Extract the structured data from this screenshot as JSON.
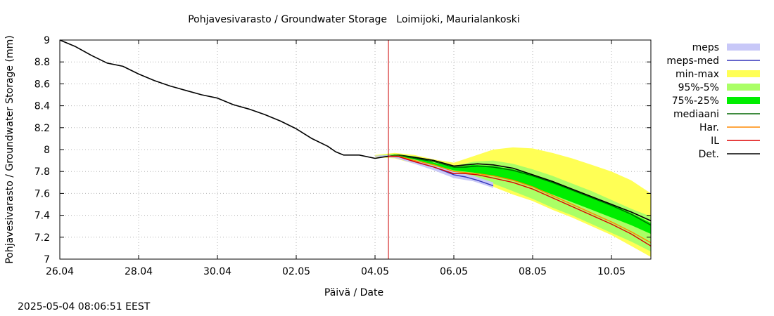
{
  "timestamp": "2025-05-04 08:06:51 EEST",
  "chart_data": {
    "type": "line",
    "title": "Pohjavesivarasto / Groundwater Storage   Loimijoki, Maurialankoski",
    "xlabel": "Päivä / Date",
    "ylabel": "Pohjavesivarasto / Groundwater Storage (mm)",
    "xlim": [
      0,
      15
    ],
    "ylim": [
      7,
      9
    ],
    "grid": true,
    "legend_position": "right",
    "x_ticks": [
      {
        "x": 0,
        "label": "26.04"
      },
      {
        "x": 2,
        "label": "28.04"
      },
      {
        "x": 4,
        "label": "30.04"
      },
      {
        "x": 6,
        "label": "02.05"
      },
      {
        "x": 8,
        "label": "04.05"
      },
      {
        "x": 10,
        "label": "06.05"
      },
      {
        "x": 12,
        "label": "08.05"
      },
      {
        "x": 14,
        "label": "10.05"
      }
    ],
    "y_ticks": [
      {
        "y": 7,
        "label": "7"
      },
      {
        "y": 7.2,
        "label": "7.2"
      },
      {
        "y": 7.4,
        "label": "7.4"
      },
      {
        "y": 7.6,
        "label": "7.6"
      },
      {
        "y": 7.8,
        "label": "7.8"
      },
      {
        "y": 8,
        "label": "8"
      },
      {
        "y": 8.2,
        "label": "8.2"
      },
      {
        "y": 8.4,
        "label": "8.4"
      },
      {
        "y": 8.6,
        "label": "8.6"
      },
      {
        "y": 8.8,
        "label": "8.8"
      },
      {
        "y": 9,
        "label": "9"
      }
    ],
    "forecast_start_x": 8.34,
    "forecast_line_color": "#cc0000",
    "bands": [
      {
        "name": "min-max",
        "color": "#ffff55",
        "x": [
          8.0,
          8.5,
          9.0,
          9.5,
          10.0,
          10.5,
          11.0,
          11.5,
          12.0,
          12.5,
          13.0,
          13.5,
          14.0,
          14.5,
          15.0
        ],
        "lower": [
          7.93,
          7.92,
          7.87,
          7.82,
          7.76,
          7.71,
          7.66,
          7.59,
          7.53,
          7.45,
          7.38,
          7.3,
          7.22,
          7.12,
          7.02
        ],
        "upper": [
          7.95,
          7.97,
          7.95,
          7.91,
          7.88,
          7.94,
          8.0,
          8.02,
          8.01,
          7.97,
          7.92,
          7.86,
          7.8,
          7.72,
          7.6
        ]
      },
      {
        "name": "95%-5%",
        "color": "#aaff66",
        "x": [
          8.0,
          8.5,
          9.0,
          9.5,
          10.0,
          10.5,
          11.0,
          11.5,
          12.0,
          12.5,
          13.0,
          13.5,
          14.0,
          14.5,
          15.0
        ],
        "lower": [
          7.935,
          7.935,
          7.89,
          7.84,
          7.78,
          7.74,
          7.69,
          7.62,
          7.55,
          7.47,
          7.4,
          7.32,
          7.24,
          7.16,
          7.07
        ],
        "upper": [
          7.945,
          7.96,
          7.94,
          7.89,
          7.85,
          7.89,
          7.9,
          7.87,
          7.82,
          7.76,
          7.69,
          7.62,
          7.54,
          7.46,
          7.39
        ]
      },
      {
        "name": "75%-25%",
        "color": "#00ee00",
        "x": [
          8.0,
          8.5,
          9.0,
          9.5,
          10.0,
          10.5,
          11.0,
          11.5,
          12.0,
          12.5,
          13.0,
          13.5,
          14.0,
          14.5,
          15.0
        ],
        "lower": [
          7.94,
          7.945,
          7.91,
          7.86,
          7.81,
          7.79,
          7.76,
          7.72,
          7.66,
          7.59,
          7.52,
          7.45,
          7.38,
          7.31,
          7.23
        ],
        "upper": [
          7.94,
          7.955,
          7.93,
          7.88,
          7.84,
          7.86,
          7.85,
          7.82,
          7.77,
          7.71,
          7.64,
          7.57,
          7.5,
          7.42,
          7.33
        ]
      },
      {
        "name": "meps",
        "color": "#c8c8f8",
        "x": [
          8.0,
          8.5,
          9.0,
          9.5,
          10.0,
          10.5,
          11.0
        ],
        "lower": [
          7.935,
          7.925,
          7.87,
          7.81,
          7.74,
          7.71,
          7.65
        ],
        "upper": [
          7.945,
          7.95,
          7.9,
          7.85,
          7.8,
          7.76,
          7.7
        ]
      }
    ],
    "series": [
      {
        "name": "Det.",
        "color": "#000000",
        "x": [
          0,
          0.4,
          0.8,
          1.2,
          1.6,
          2.0,
          2.4,
          2.8,
          3.2,
          3.6,
          4.0,
          4.4,
          4.8,
          5.2,
          5.6,
          6.0,
          6.4,
          6.8,
          7.0,
          7.2,
          7.6,
          8.0,
          8.34,
          8.6,
          9.0,
          9.5,
          10.0,
          10.3,
          10.6,
          11.0,
          11.5,
          12.0,
          12.5,
          13.0,
          13.5,
          14.0,
          14.5,
          15.0
        ],
        "y": [
          9.0,
          8.94,
          8.86,
          8.79,
          8.76,
          8.69,
          8.63,
          8.58,
          8.54,
          8.5,
          8.47,
          8.41,
          8.37,
          8.32,
          8.26,
          8.19,
          8.1,
          8.03,
          7.98,
          7.95,
          7.95,
          7.92,
          7.94,
          7.95,
          7.93,
          7.9,
          7.85,
          7.86,
          7.87,
          7.86,
          7.83,
          7.77,
          7.71,
          7.64,
          7.57,
          7.5,
          7.43,
          7.35
        ]
      },
      {
        "name": "mediaani",
        "color": "#006600",
        "x": [
          8.34,
          8.6,
          9.0,
          9.5,
          10.0,
          10.3,
          10.6,
          11.0,
          11.5,
          12.0,
          12.5,
          13.0,
          13.5,
          14.0,
          14.5,
          15.0
        ],
        "y": [
          7.94,
          7.95,
          7.92,
          7.89,
          7.84,
          7.84,
          7.85,
          7.84,
          7.81,
          7.76,
          7.7,
          7.63,
          7.56,
          7.49,
          7.41,
          7.31
        ]
      },
      {
        "name": "meps-med",
        "color": "#3333bb",
        "x": [
          8.34,
          8.6,
          9.0,
          9.5,
          10.0,
          10.3,
          10.6,
          11.0
        ],
        "y": [
          7.94,
          7.935,
          7.89,
          7.84,
          7.77,
          7.75,
          7.72,
          7.67
        ]
      },
      {
        "name": "Har.",
        "color": "#ff8800",
        "x": [
          8.34,
          8.6,
          9.0,
          9.5,
          10.0,
          10.3,
          10.6,
          11.0,
          11.5,
          12.0,
          12.5,
          13.0,
          13.5,
          14.0,
          14.5,
          15.0
        ],
        "y": [
          7.94,
          7.94,
          7.9,
          7.86,
          7.8,
          7.79,
          7.78,
          7.76,
          7.72,
          7.66,
          7.58,
          7.5,
          7.42,
          7.34,
          7.25,
          7.15
        ]
      },
      {
        "name": "IL",
        "color": "#dd0000",
        "x": [
          8.34,
          8.6,
          9.0,
          9.5,
          10.0,
          10.3,
          10.6,
          11.0,
          11.5,
          12.0,
          12.5,
          13.0,
          13.5,
          14.0,
          14.5,
          15.0
        ],
        "y": [
          7.94,
          7.935,
          7.89,
          7.84,
          7.78,
          7.78,
          7.77,
          7.74,
          7.7,
          7.64,
          7.56,
          7.48,
          7.4,
          7.32,
          7.23,
          7.12
        ]
      }
    ],
    "legend": [
      {
        "label": "meps",
        "kind": "band",
        "color": "#c8c8f8"
      },
      {
        "label": "meps-med",
        "kind": "line",
        "color": "#3333bb"
      },
      {
        "label": "min-max",
        "kind": "band",
        "color": "#ffff55"
      },
      {
        "label": "95%-5%",
        "kind": "band",
        "color": "#aaff66"
      },
      {
        "label": "75%-25%",
        "kind": "band",
        "color": "#00ee00"
      },
      {
        "label": "mediaani",
        "kind": "line",
        "color": "#006600"
      },
      {
        "label": "Har.",
        "kind": "line",
        "color": "#ff8800"
      },
      {
        "label": "IL",
        "kind": "line",
        "color": "#dd0000"
      },
      {
        "label": "Det.",
        "kind": "line",
        "color": "#000000"
      }
    ]
  }
}
